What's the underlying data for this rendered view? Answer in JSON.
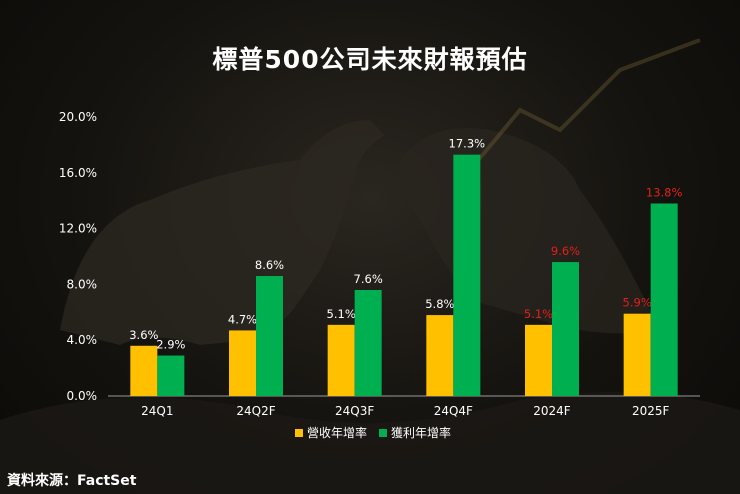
{
  "header": {
    "title": "標普500公司未來財報預估"
  },
  "footer": {
    "source": "資料來源：FactSet"
  },
  "colors": {
    "revenue": "#FFC000",
    "earnings": "#00B050",
    "estimate_label": "#E0201B",
    "actual_label": "#FFFFFF"
  },
  "chart_data": {
    "type": "bar",
    "title": "標普500公司未來財報預估",
    "categories": [
      "24Q1",
      "24Q2F",
      "24Q3F",
      "24Q4F",
      "2024F",
      "2025F"
    ],
    "series": [
      {
        "name": "營收年增率",
        "values": [
          3.6,
          4.7,
          5.1,
          5.8,
          5.1,
          5.9
        ],
        "labels": [
          "3.6%",
          "4.7%",
          "5.1%",
          "5.8%",
          "5.1%",
          "5.9%"
        ],
        "label_colors": [
          "#FFFFFF",
          "#FFFFFF",
          "#FFFFFF",
          "#FFFFFF",
          "#E0201B",
          "#E0201B"
        ]
      },
      {
        "name": "獲利年增率",
        "values": [
          2.9,
          8.6,
          7.6,
          17.3,
          9.6,
          13.8
        ],
        "labels": [
          "2.9%",
          "8.6%",
          "7.6%",
          "17.3%",
          "9.6%",
          "13.8%"
        ],
        "label_colors": [
          "#FFFFFF",
          "#FFFFFF",
          "#FFFFFF",
          "#FFFFFF",
          "#E0201B",
          "#E0201B"
        ]
      }
    ],
    "ylim": [
      0,
      20
    ],
    "yticks": [
      "0.0%",
      "4.0%",
      "8.0%",
      "12.0%",
      "16.0%",
      "20.0%"
    ],
    "ytick_values": [
      0,
      4,
      8,
      12,
      16,
      20
    ],
    "grid": false,
    "legend_position": "bottom-center"
  }
}
